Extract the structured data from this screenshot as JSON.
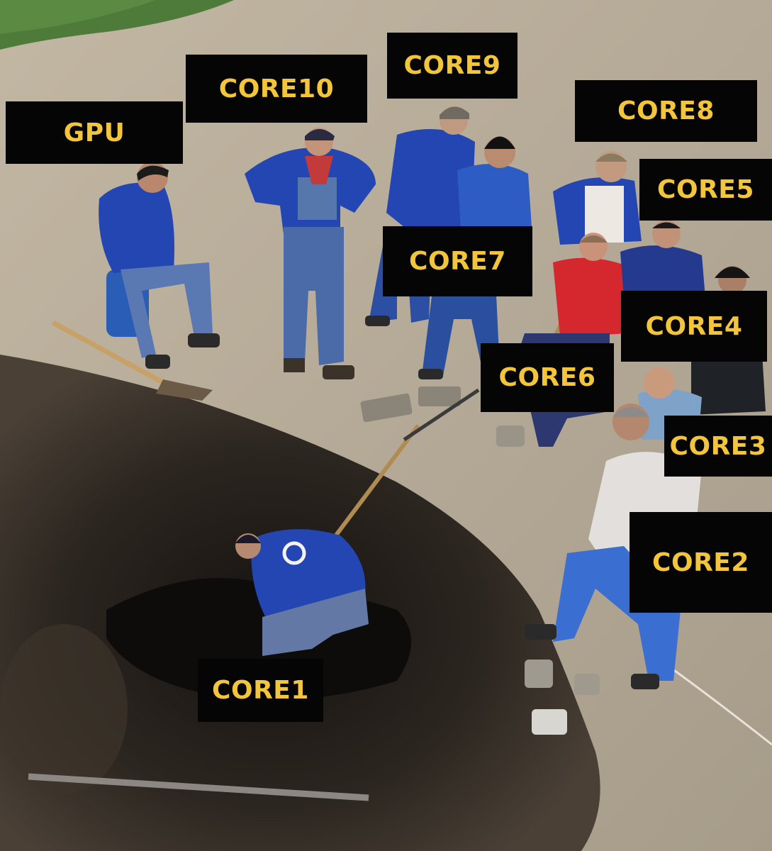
{
  "labels": {
    "gpu": "GPU",
    "core10": "CORE10",
    "core9": "CORE9",
    "core8": "CORE8",
    "core5": "CORE5",
    "core7": "CORE7",
    "core4": "CORE4",
    "core6": "CORE6",
    "core3": "CORE3",
    "core2": "CORE2",
    "core1": "CORE1"
  },
  "colors": {
    "label_background": "#050505",
    "label_text": "#f2c53a",
    "ground": "#b7ab98",
    "dirt": "#2b2620",
    "workwear_blue": "#2346b3"
  }
}
